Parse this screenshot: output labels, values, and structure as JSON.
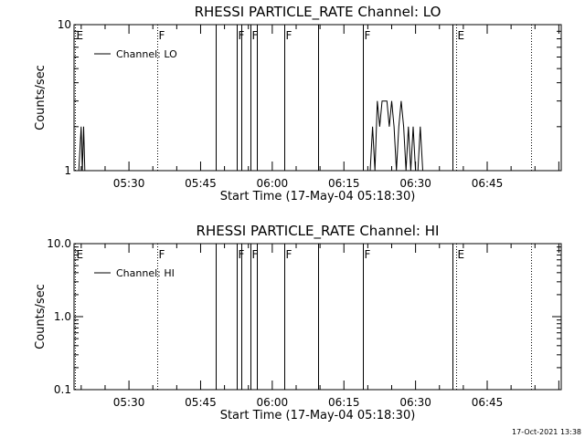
{
  "footer": {
    "timestamp": "17-Oct-2021 13:38"
  },
  "chart_data": [
    {
      "type": "line",
      "title": "RHESSI PARTICLE_RATE Channel: LO",
      "xlabel": "Start Time (17-May-04 05:18:30)",
      "ylabel": "Counts/sec",
      "yscale": "log",
      "ylim": [
        1,
        10
      ],
      "yticks": [
        1,
        10
      ],
      "ytick_labels": [
        "1",
        "10"
      ],
      "xlim_minutes": [
        5.3,
        19.8
      ],
      "xlim": [
        "05:18:30",
        "07:00:30"
      ],
      "xticks": [
        "05:30",
        "05:45",
        "06:00",
        "06:15",
        "06:30",
        "06:45"
      ],
      "legend": {
        "label": "Channel: LO",
        "placement": "top-left"
      },
      "event_lines": [
        {
          "label": "E",
          "time": "05:18:42",
          "style": "dotted"
        },
        {
          "label": "F",
          "time": "05:36:00",
          "style": "dotted"
        },
        {
          "label": "",
          "time": "05:48:15",
          "style": "solid"
        },
        {
          "label": "F",
          "time": "05:52:30",
          "style": "solid"
        },
        {
          "label": "",
          "time": "05:53:30",
          "style": "solid"
        },
        {
          "label": "F",
          "time": "05:55:30",
          "style": "solid"
        },
        {
          "label": "",
          "time": "05:56:45",
          "style": "solid"
        },
        {
          "label": "F",
          "time": "06:02:30",
          "style": "solid"
        },
        {
          "label": "",
          "time": "06:09:30",
          "style": "solid"
        },
        {
          "label": "F",
          "time": "06:19:00",
          "style": "solid"
        },
        {
          "label": "",
          "time": "06:37:45",
          "style": "solid"
        },
        {
          "label": "E",
          "time": "06:38:30",
          "style": "dotted"
        },
        {
          "label": "",
          "time": "06:54:15",
          "style": "dotted"
        }
      ],
      "series": [
        {
          "name": "Channel: LO",
          "x": [
            "05:19:30",
            "05:20:00",
            "05:20:15",
            "05:20:30",
            "05:20:45",
            "05:21:00",
            "05:21:30",
            "06:20:30",
            "06:21:00",
            "06:21:30",
            "06:22:00",
            "06:22:30",
            "06:23:00",
            "06:23:30",
            "06:24:00",
            "06:24:30",
            "06:25:00",
            "06:25:30",
            "06:26:00",
            "06:26:30",
            "06:27:00",
            "06:27:30",
            "06:28:00",
            "06:28:30",
            "06:29:00",
            "06:29:30",
            "06:30:00",
            "06:30:30",
            "06:31:00",
            "06:31:30"
          ],
          "y": [
            1,
            2,
            1,
            2,
            1,
            1,
            1,
            1,
            2,
            1,
            3,
            2,
            3,
            3,
            3,
            2,
            3,
            2,
            1,
            2,
            3,
            2,
            1,
            2,
            1,
            2,
            1,
            1,
            2,
            1
          ]
        }
      ]
    },
    {
      "type": "line",
      "title": "RHESSI PARTICLE_RATE Channel: HI",
      "xlabel": "Start Time (17-May-04 05:18:30)",
      "ylabel": "Counts/sec",
      "yscale": "log",
      "ylim": [
        0.1,
        10
      ],
      "yticks": [
        0.1,
        1,
        10
      ],
      "ytick_labels": [
        "0.1",
        "1.0",
        "10.0"
      ],
      "xlim_minutes": [
        5.3,
        19.8
      ],
      "xlim": [
        "05:18:30",
        "07:00:30"
      ],
      "xticks": [
        "05:30",
        "05:45",
        "06:00",
        "06:15",
        "06:30",
        "06:45"
      ],
      "legend": {
        "label": "Channel: HI",
        "placement": "top-left"
      },
      "event_lines": [
        {
          "label": "E",
          "time": "05:18:42",
          "style": "dotted"
        },
        {
          "label": "F",
          "time": "05:36:00",
          "style": "dotted"
        },
        {
          "label": "",
          "time": "05:48:15",
          "style": "solid"
        },
        {
          "label": "F",
          "time": "05:52:30",
          "style": "solid"
        },
        {
          "label": "",
          "time": "05:53:30",
          "style": "solid"
        },
        {
          "label": "F",
          "time": "05:55:30",
          "style": "solid"
        },
        {
          "label": "",
          "time": "05:56:45",
          "style": "solid"
        },
        {
          "label": "F",
          "time": "06:02:30",
          "style": "solid"
        },
        {
          "label": "",
          "time": "06:09:30",
          "style": "solid"
        },
        {
          "label": "F",
          "time": "06:19:00",
          "style": "solid"
        },
        {
          "label": "",
          "time": "06:37:45",
          "style": "solid"
        },
        {
          "label": "E",
          "time": "06:38:30",
          "style": "dotted"
        },
        {
          "label": "",
          "time": "06:54:15",
          "style": "dotted"
        }
      ],
      "series": [
        {
          "name": "Channel: HI",
          "x": [],
          "y": []
        }
      ]
    }
  ]
}
